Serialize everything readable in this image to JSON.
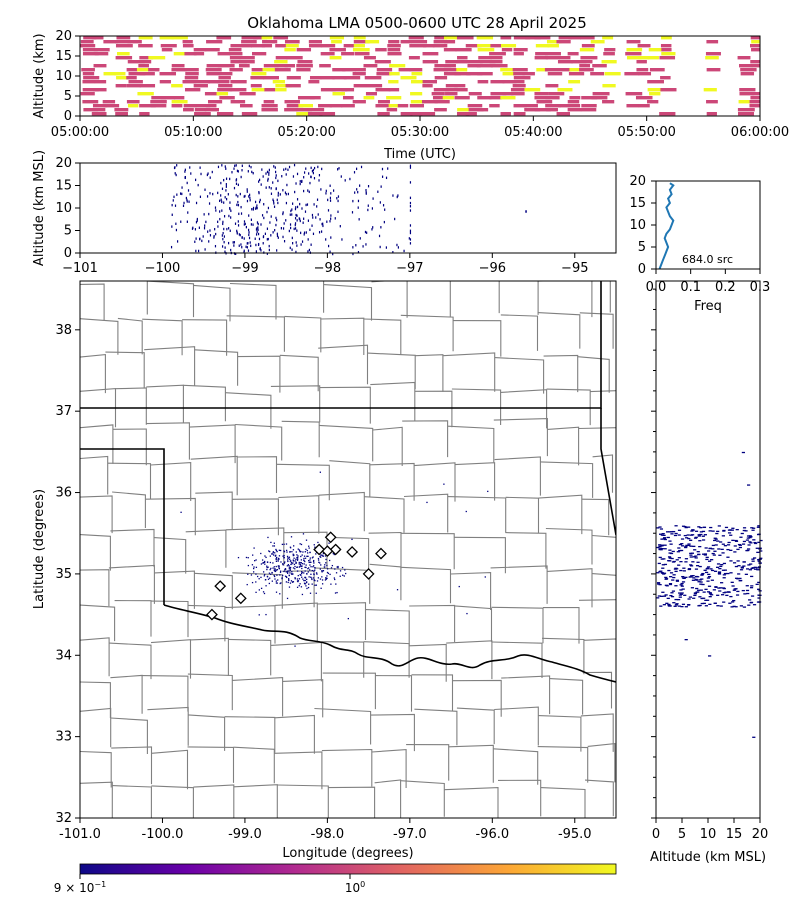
{
  "title": "Oklahoma LMA 0500-0600 UTC 28 April 2025",
  "colors": {
    "state_border": "#000000",
    "county_border": "#808080",
    "density_low": "#cc4778",
    "density_high": "#f0f921",
    "source_marker": "#000080",
    "station_fill": "#ffffff",
    "profile_line": "#1f77b4"
  },
  "chart_data": [
    {
      "type": "heatmap",
      "panel": "time-height",
      "ylabel": "Altitude (km)",
      "xlabel": "Time (UTC)",
      "xticks": [
        "05:00:00",
        "05:10:00",
        "05:20:00",
        "05:30:00",
        "05:40:00",
        "05:50:00",
        "06:00:00"
      ],
      "yticks": [
        "0",
        "5",
        "10",
        "15",
        "20"
      ],
      "ylim": [
        0,
        20
      ],
      "time_range": [
        "05:00:00",
        "06:00:00"
      ],
      "bin_minutes": 1,
      "bin_km": 1,
      "activity_minutes": [
        [
          0,
          47
        ],
        [
          48,
          52
        ],
        [
          55,
          56
        ],
        [
          58,
          60
        ]
      ]
    },
    {
      "type": "scatter",
      "panel": "lon-alt",
      "ylabel": "Altitude (km MSL)",
      "xticks": [
        "−101",
        "−100",
        "−99",
        "−98",
        "−97",
        "−96",
        "−95"
      ],
      "yticks": [
        "0",
        "5",
        "10",
        "15",
        "20"
      ],
      "xlim": [
        -101,
        -94.5
      ],
      "ylim": [
        0,
        20
      ],
      "lon_range": [
        -99.9,
        -97.0
      ],
      "outliers": [
        {
          "lon": -95.6,
          "alt": 9.5
        }
      ]
    },
    {
      "type": "line",
      "panel": "altitude-frequency",
      "xlabel": "Freq",
      "xticks": [
        "0.0",
        "0.1",
        "0.2",
        "0.3"
      ],
      "yticks": [
        "0",
        "5",
        "10",
        "15",
        "20"
      ],
      "xlim": [
        0,
        0.3
      ],
      "ylim": [
        0,
        20
      ],
      "annotation": "684.0 src",
      "series": [
        {
          "altitude": [
            0,
            1,
            2,
            3,
            4,
            5,
            6,
            7,
            8,
            9,
            10,
            11,
            12,
            13,
            14,
            15,
            16,
            17,
            18,
            19,
            19.5
          ],
          "freq": [
            0.01,
            0.015,
            0.02,
            0.025,
            0.03,
            0.035,
            0.03,
            0.025,
            0.03,
            0.04,
            0.045,
            0.05,
            0.04,
            0.035,
            0.03,
            0.04,
            0.035,
            0.045,
            0.04,
            0.05,
            0.04
          ]
        }
      ]
    },
    {
      "type": "scatter",
      "panel": "plan-view",
      "xlabel": "Longitude (degrees)",
      "ylabel": "Latitude (degrees)",
      "xticks": [
        "-101.0",
        "-100.0",
        "-99.0",
        "-98.0",
        "-97.0",
        "-96.0",
        "-95.0"
      ],
      "yticks": [
        "32",
        "33",
        "34",
        "35",
        "36",
        "37",
        "38"
      ],
      "xlim": [
        -101.0,
        -94.5
      ],
      "ylim": [
        32.0,
        38.6
      ],
      "source_center": {
        "lon": -98.4,
        "lat": 35.1
      },
      "stations": [
        {
          "lon": -97.96,
          "lat": 35.45
        },
        {
          "lon": -97.9,
          "lat": 35.3
        },
        {
          "lon": -98.1,
          "lat": 35.3
        },
        {
          "lon": -98.0,
          "lat": 35.28
        },
        {
          "lon": -97.7,
          "lat": 35.27
        },
        {
          "lon": -97.35,
          "lat": 35.25
        },
        {
          "lon": -97.5,
          "lat": 35.0
        },
        {
          "lon": -99.3,
          "lat": 34.85
        },
        {
          "lon": -99.05,
          "lat": 34.7
        },
        {
          "lon": -99.4,
          "lat": 34.5
        }
      ]
    },
    {
      "type": "scatter",
      "panel": "alt-lat",
      "xlabel": "Altitude (km MSL)",
      "xticks": [
        "0",
        "5",
        "10",
        "15",
        "20"
      ],
      "xlim": [
        0,
        20
      ],
      "ylim": [
        32.0,
        38.6
      ],
      "lat_range": [
        34.6,
        35.6
      ],
      "outliers": [
        {
          "alt": 16.5,
          "lat": 36.5
        },
        {
          "alt": 17.5,
          "lat": 36.1
        },
        {
          "alt": 18.5,
          "lat": 33.0
        },
        {
          "alt": 5.5,
          "lat": 34.2
        },
        {
          "alt": 10.0,
          "lat": 34.0
        }
      ]
    }
  ],
  "colorbar": {
    "label_left": "9 × 10",
    "label_left_exp": "−1",
    "label_mid": "10",
    "label_mid_exp": "0",
    "colors": [
      "#0d0887",
      "#6a00a8",
      "#b12a90",
      "#e16462",
      "#fca636",
      "#f0f921"
    ]
  }
}
